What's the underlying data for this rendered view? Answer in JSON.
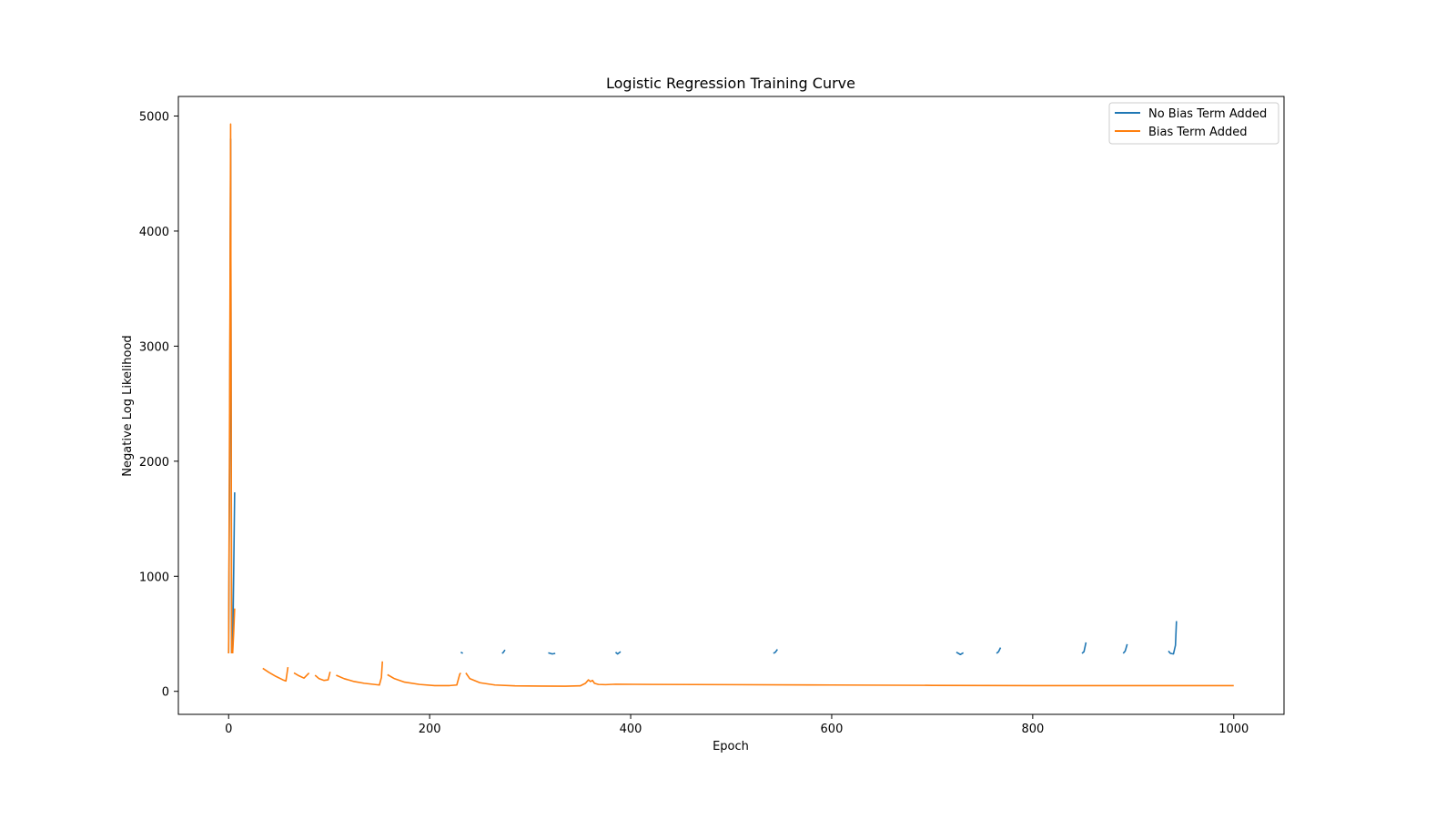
{
  "chart_data": {
    "type": "line",
    "title": "Logistic Regression Training Curve",
    "xlabel": "Epoch",
    "ylabel": "Negative Log Likelihood",
    "xlim": [
      -50,
      1050
    ],
    "ylim": [
      -200,
      5170
    ],
    "xticks": [
      0,
      200,
      400,
      600,
      800,
      1000
    ],
    "yticks": [
      0,
      1000,
      2000,
      3000,
      4000,
      5000
    ],
    "grid": false,
    "legend_position": "top-right",
    "series": [
      {
        "name": "No Bias Term Added",
        "color": "#1f77b4",
        "segments": [
          [
            [
              0,
              330
            ],
            [
              1,
              2000
            ],
            [
              2,
              4800
            ],
            [
              3,
              330
            ]
          ],
          [
            [
              4,
              330
            ],
            [
              5,
              1000
            ],
            [
              6,
              1730
            ]
          ],
          [
            [
              231,
              340
            ],
            [
              233,
              330
            ]
          ],
          [
            [
              272,
              330
            ],
            [
              273,
              335
            ],
            [
              275,
              360
            ]
          ],
          [
            [
              318,
              335
            ],
            [
              322,
              325
            ],
            [
              325,
              330
            ]
          ],
          [
            [
              385,
              340
            ],
            [
              387,
              325
            ],
            [
              390,
              345
            ]
          ],
          [
            [
              542,
              330
            ],
            [
              544,
              340
            ],
            [
              546,
              365
            ]
          ],
          [
            [
              724,
              340
            ],
            [
              728,
              320
            ],
            [
              731,
              335
            ]
          ],
          [
            [
              764,
              330
            ],
            [
              766,
              345
            ],
            [
              768,
              380
            ]
          ],
          [
            [
              849,
              330
            ],
            [
              851,
              345
            ],
            [
              853,
              425
            ]
          ],
          [
            [
              890,
              330
            ],
            [
              892,
              350
            ],
            [
              894,
              410
            ]
          ],
          [
            [
              935,
              350
            ],
            [
              937,
              330
            ],
            [
              940,
              325
            ],
            [
              942,
              400
            ],
            [
              943,
              610
            ]
          ]
        ]
      },
      {
        "name": "Bias Term Added",
        "color": "#ff7f0e",
        "segments": [
          [
            [
              0,
              330
            ],
            [
              1,
              2500
            ],
            [
              2,
              4930
            ],
            [
              3,
              330
            ]
          ],
          [
            [
              4,
              330
            ],
            [
              5,
              500
            ],
            [
              6,
              720
            ]
          ],
          [
            [
              34,
              200
            ],
            [
              40,
              165
            ],
            [
              47,
              130
            ],
            [
              54,
              100
            ],
            [
              57,
              90
            ],
            [
              59,
              210
            ]
          ],
          [
            [
              65,
              160
            ],
            [
              70,
              135
            ],
            [
              75,
              115
            ],
            [
              79,
              150
            ],
            [
              80,
              160
            ]
          ],
          [
            [
              86,
              140
            ],
            [
              90,
              110
            ],
            [
              95,
              95
            ],
            [
              99,
              100
            ],
            [
              101,
              170
            ]
          ],
          [
            [
              107,
              140
            ],
            [
              115,
              110
            ],
            [
              125,
              85
            ],
            [
              135,
              70
            ],
            [
              145,
              60
            ],
            [
              150,
              55
            ],
            [
              152,
              120
            ],
            [
              153,
              260
            ]
          ],
          [
            [
              158,
              145
            ],
            [
              165,
              110
            ],
            [
              175,
              80
            ],
            [
              190,
              60
            ],
            [
              205,
              50
            ],
            [
              220,
              50
            ],
            [
              227,
              55
            ],
            [
              230,
              150
            ],
            [
              231,
              160
            ]
          ],
          [
            [
              236,
              160
            ],
            [
              240,
              110
            ],
            [
              250,
              75
            ],
            [
              265,
              55
            ],
            [
              285,
              48
            ],
            [
              310,
              46
            ],
            [
              335,
              45
            ],
            [
              350,
              48
            ],
            [
              355,
              70
            ],
            [
              358,
              100
            ],
            [
              360,
              85
            ],
            [
              362,
              95
            ],
            [
              364,
              70
            ],
            [
              368,
              60
            ],
            [
              375,
              58
            ],
            [
              385,
              62
            ],
            [
              420,
              60
            ],
            [
              500,
              58
            ],
            [
              600,
              55
            ],
            [
              700,
              52
            ],
            [
              800,
              50
            ],
            [
              900,
              50
            ],
            [
              1000,
              50
            ]
          ]
        ]
      }
    ]
  }
}
